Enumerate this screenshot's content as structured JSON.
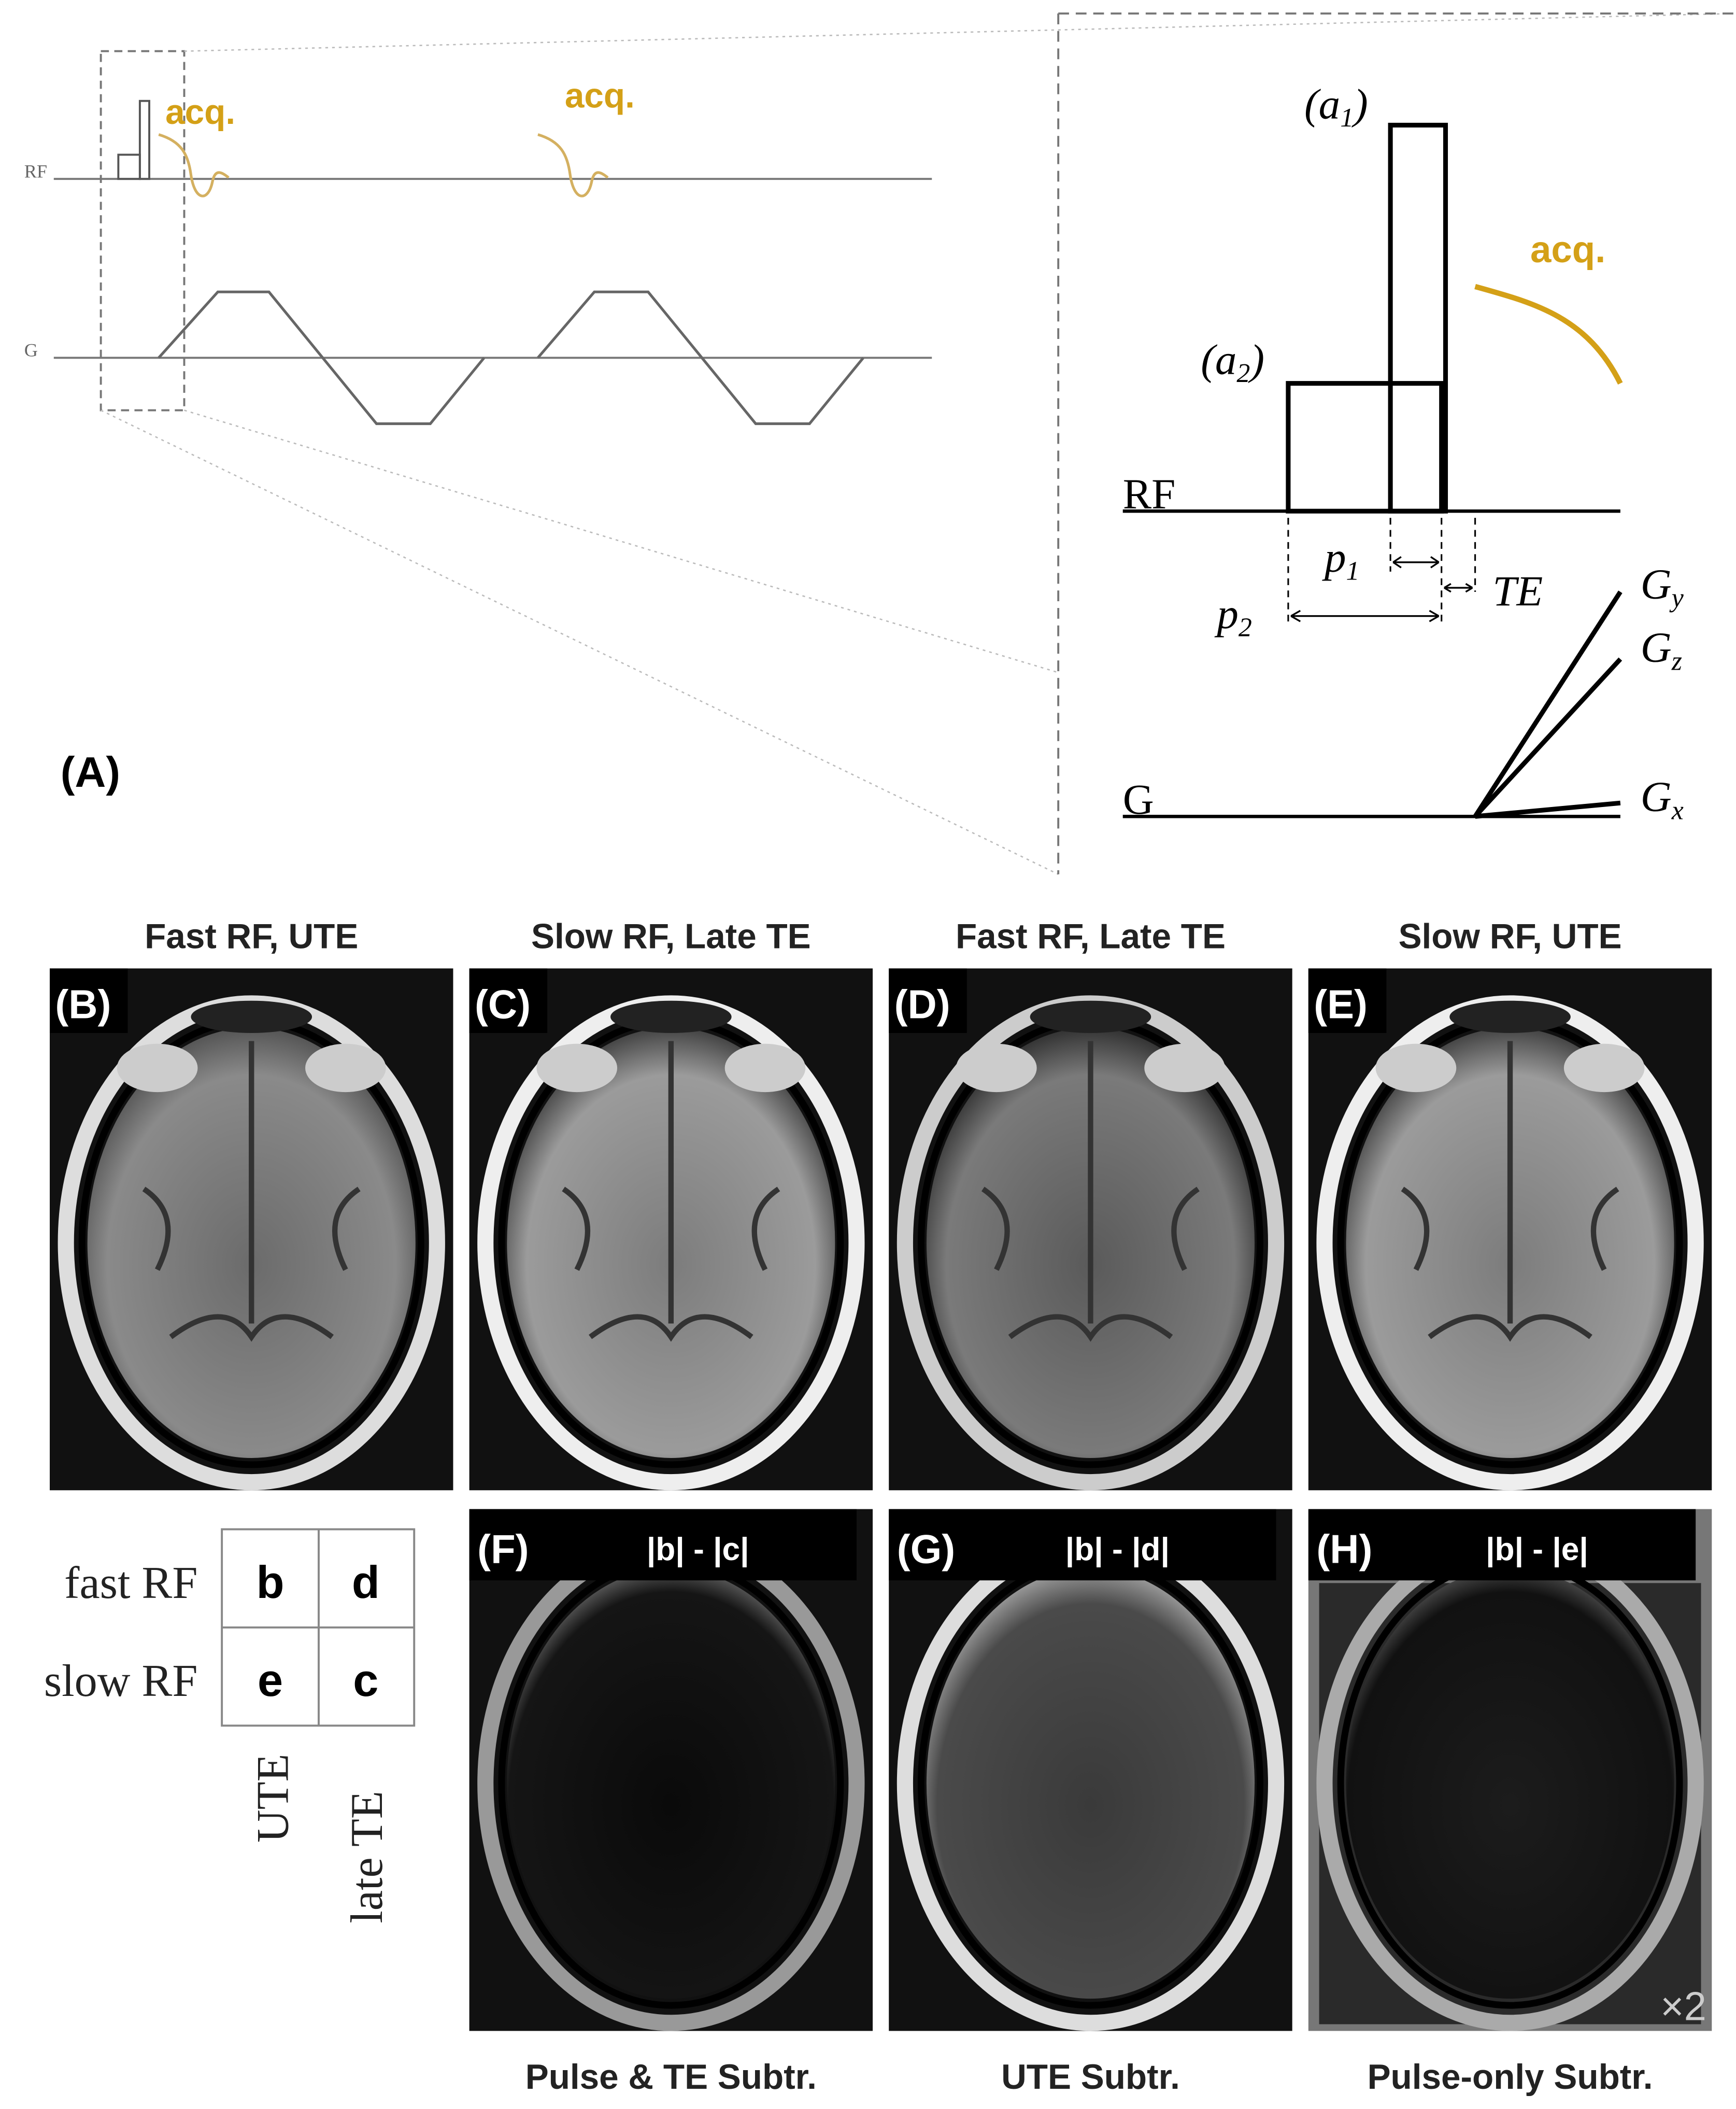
{
  "panel_a": {
    "label": "(A)",
    "overview": {
      "rf_label": "RF",
      "g_label": "G",
      "acq_labels": [
        "acq.",
        "acq."
      ]
    },
    "zoom": {
      "rf_label": "RF",
      "g_label": "G",
      "acq_label": "acq.",
      "a1": {
        "base": "(a",
        "sub": "1",
        "end": ")"
      },
      "a2": {
        "base": "(a",
        "sub": "2",
        "end": ")"
      },
      "p1": {
        "base": "p",
        "sub": "1"
      },
      "p2": {
        "base": "p",
        "sub": "2"
      },
      "te": "TE",
      "gradients": [
        {
          "base": "G",
          "sub": "y"
        },
        {
          "base": "G",
          "sub": "z"
        },
        {
          "base": "G",
          "sub": "x"
        }
      ]
    }
  },
  "images": [
    {
      "label": "(B)",
      "title": "Fast RF, UTE"
    },
    {
      "label": "(C)",
      "title": "Slow RF, Late TE"
    },
    {
      "label": "(D)",
      "title": "Fast RF, Late TE"
    },
    {
      "label": "(E)",
      "title": "Slow RF, UTE"
    },
    {
      "label": "(F)",
      "formula": "|b| - |c|",
      "caption": "Pulse & TE  Subtr."
    },
    {
      "label": "(G)",
      "formula": "|b| - |d|",
      "caption": "UTE  Subtr."
    },
    {
      "label": "(H)",
      "formula": "|b| - |e|",
      "caption": "Pulse-only  Subtr.",
      "scale_note": "×2"
    }
  ],
  "table": {
    "rows": [
      {
        "label": "fast RF",
        "cells": [
          "b",
          "d"
        ]
      },
      {
        "label": "slow RF",
        "cells": [
          "e",
          "c"
        ]
      }
    ],
    "columns": [
      "UTE",
      "late TE"
    ]
  }
}
